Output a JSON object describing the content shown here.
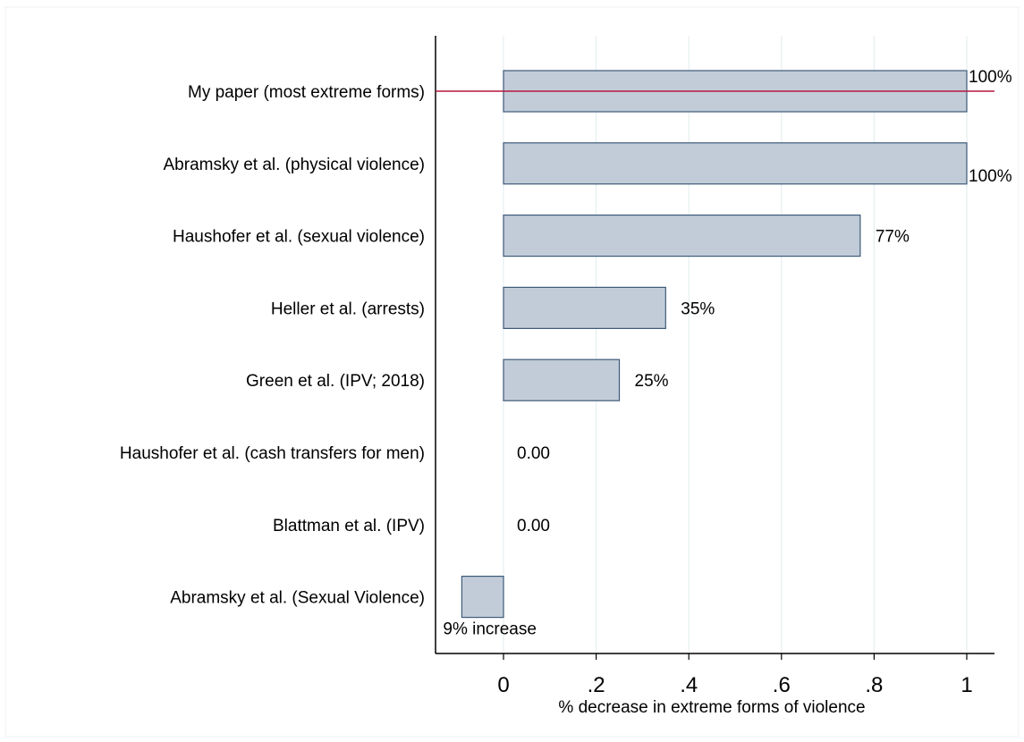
{
  "chart_data": {
    "type": "bar",
    "orientation": "horizontal",
    "categories": [
      "My paper (most extreme forms)",
      "Abramsky et al. (physical violence)",
      "Haushofer et al. (sexual violence)",
      "Heller et al. (arrests)",
      "Green et al. (IPV; 2018)",
      "Haushofer et al. (cash transfers for men)",
      "Blattman et al. (IPV)",
      "Abramsky et al. (Sexual Violence)"
    ],
    "values": [
      1.0,
      1.0,
      0.77,
      0.35,
      0.25,
      0.0,
      0.0,
      -0.09
    ],
    "data_labels": [
      "100%",
      "100%",
      "77%",
      "35%",
      "25%",
      "0.00",
      "0.00",
      "9% increase"
    ],
    "xlabel": "% decrease in extreme forms of violence",
    "xticks": [
      0,
      0.2,
      0.4,
      0.6,
      0.8,
      1.0
    ],
    "xtick_labels": [
      "0",
      ".2",
      ".4",
      ".6",
      ".8",
      "1"
    ],
    "xlim": [
      -0.14,
      1.05
    ],
    "reference_line": {
      "category": "My paper (most extreme forms)",
      "orientation": "horizontal"
    },
    "grid": true,
    "legend": "none",
    "colors": {
      "bar_fill": "#c2ccd8",
      "bar_edge": "#3d5a7a",
      "reference_line": "#b5173f",
      "grid": "#e6eef0"
    }
  }
}
